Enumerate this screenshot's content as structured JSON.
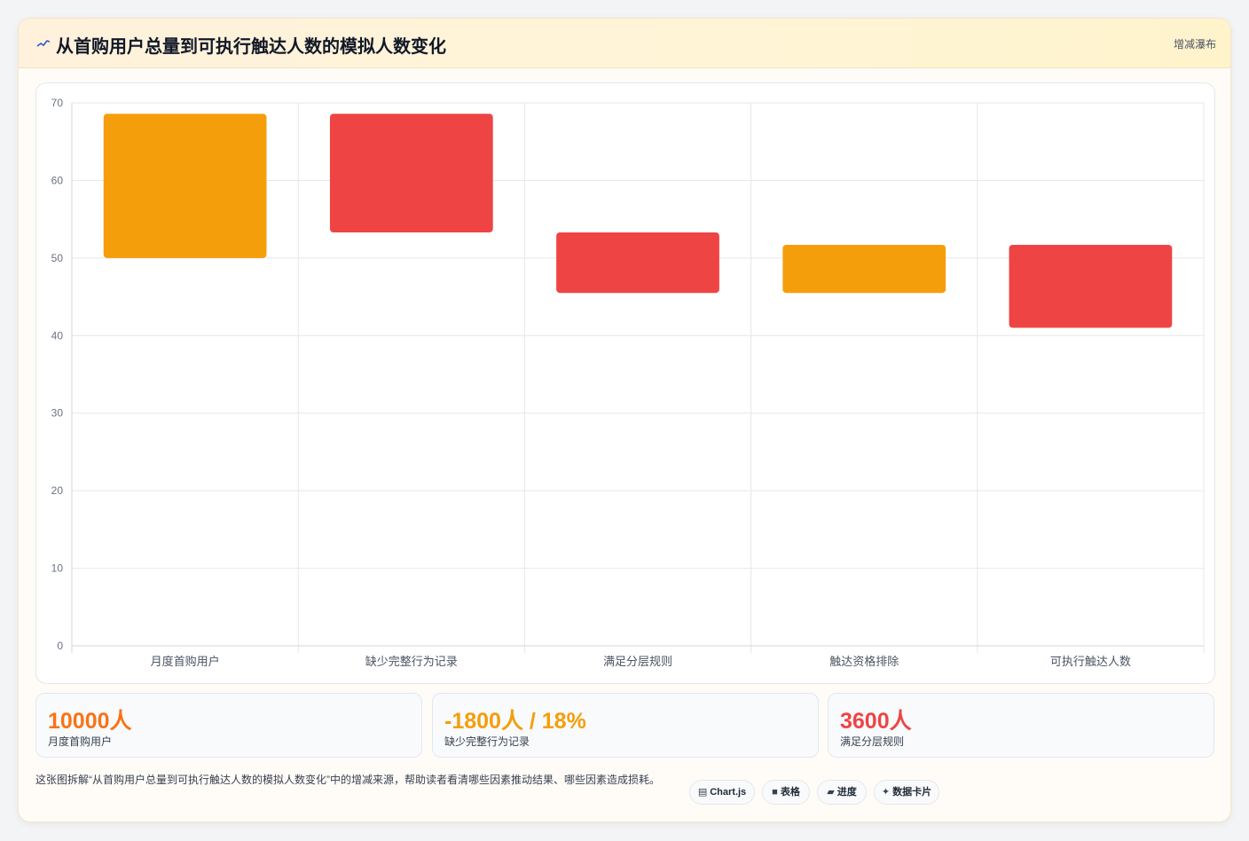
{
  "header": {
    "title_icon": "sparkline-icon",
    "title": "从首购用户总量到可执行触达人数的模拟人数变化",
    "chart_type_label": "增减瀑布"
  },
  "colors": {
    "orange": "#f59e0b",
    "red": "#ef4444",
    "stat_orange": "#f97316",
    "stat_amber": "#f59e0b",
    "stat_red": "#ef4444"
  },
  "chart_data": {
    "type": "bar",
    "subtype": "floating-waterfall",
    "categories": [
      "月度首购用户",
      "缺少完整行为记录",
      "满足分层规则",
      "触达资格排除",
      "可执行触达人数"
    ],
    "ranges": [
      [
        50,
        68.6
      ],
      [
        53.3,
        68.6
      ],
      [
        45.5,
        53.3
      ],
      [
        45.5,
        51.7
      ],
      [
        41,
        51.7
      ]
    ],
    "bar_colors": [
      "#f59e0b",
      "#ef4444",
      "#ef4444",
      "#f59e0b",
      "#ef4444"
    ],
    "ylim": [
      0,
      70
    ],
    "yticks": [
      0,
      10,
      20,
      30,
      40,
      50,
      60,
      70
    ],
    "grid": true,
    "title": "",
    "xlabel": "",
    "ylabel": ""
  },
  "stats": [
    {
      "value": "10000人",
      "label": "月度首购用户",
      "color": "#f97316"
    },
    {
      "value": "-1800人 / 18%",
      "label": "缺少完整行为记录",
      "color": "#f59e0b"
    },
    {
      "value": "3600人",
      "label": "满足分层规则",
      "color": "#ef4444"
    }
  ],
  "description": "这张图拆解“从首购用户总量到可执行触达人数的模拟人数变化”中的增减来源，帮助读者看清哪些因素推动结果、哪些因素造成损耗。",
  "tags": [
    {
      "glyph": "▤",
      "label": "Chart.js"
    },
    {
      "glyph": "■",
      "label": "表格"
    },
    {
      "glyph": "▰",
      "label": "进度"
    },
    {
      "glyph": "✦",
      "label": "数据卡片"
    }
  ]
}
